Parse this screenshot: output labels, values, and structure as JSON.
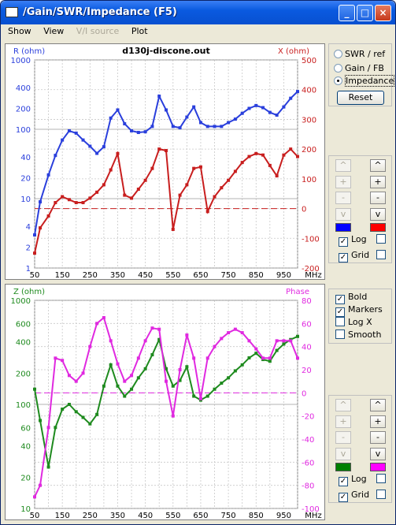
{
  "window": {
    "title": "/Gain/SWR/Impedance  (F5)"
  },
  "menu": {
    "show": "Show",
    "view": "View",
    "vi_source": "V/I source",
    "plot": "Plot"
  },
  "top_plot": {
    "title": "d130j-discone.out",
    "left_label": "R (ohm)",
    "right_label": "X (ohm)",
    "x_unit": "MHz",
    "x_ticks": [
      "50",
      "150",
      "250",
      "350",
      "450",
      "550",
      "650",
      "750",
      "850",
      "950"
    ],
    "left_ticks": [
      "1000",
      "400",
      "200",
      "100",
      "40",
      "20",
      "10",
      "4",
      "2",
      "1"
    ],
    "right_ticks": [
      "500",
      "400",
      "300",
      "200",
      "100",
      "0",
      "-100",
      "-200"
    ],
    "left_color": "#2a3fdc",
    "right_color": "#c81e1e"
  },
  "bottom_plot": {
    "left_label": "Z (ohm)",
    "right_label": "Phase",
    "x_unit": "MHz",
    "x_ticks": [
      "50",
      "150",
      "250",
      "350",
      "450",
      "550",
      "650",
      "750",
      "850",
      "950"
    ],
    "left_ticks": [
      "1000",
      "600",
      "400",
      "200",
      "100",
      "60",
      "40",
      "20",
      "10"
    ],
    "right_ticks": [
      "80",
      "60",
      "40",
      "20",
      "0",
      "-20",
      "-40",
      "-60",
      "-80",
      "-100"
    ],
    "left_color": "#1e8a1e",
    "right_color": "#e029e0"
  },
  "top_panel": {
    "radios": [
      "SWR / ref",
      "Gain / FB",
      "Impedance"
    ],
    "selected": "Impedance",
    "reset": "Reset",
    "buttons": [
      "^",
      "^",
      "+",
      "+",
      "-",
      "-",
      "v",
      "v"
    ],
    "log": "Log",
    "grid": "Grid",
    "log_checked": true,
    "grid_checked": true,
    "swatch_left": "#0000ff",
    "swatch_right": "#ff0000"
  },
  "bottom_panel": {
    "options": [
      {
        "label": "Bold",
        "checked": true
      },
      {
        "label": "Markers",
        "checked": true
      },
      {
        "label": "Log X",
        "checked": false
      },
      {
        "label": "Smooth",
        "checked": false
      }
    ],
    "buttons": [
      "^",
      "^",
      "+",
      "+",
      "-",
      "-",
      "v",
      "v"
    ],
    "log": "Log",
    "grid": "Grid",
    "log_checked": true,
    "grid_checked": true,
    "swatch_left": "#008000",
    "swatch_right": "#ff00ff"
  },
  "chart_data": [
    {
      "type": "line",
      "title": "d130j-discone.out",
      "xlabel": "MHz",
      "xlim": [
        50,
        1000
      ],
      "series": [
        {
          "name": "R (ohm)",
          "axis": "left-log",
          "ylim": [
            1,
            1000
          ],
          "x": [
            50,
            70,
            100,
            125,
            150,
            175,
            200,
            225,
            250,
            275,
            300,
            325,
            350,
            375,
            400,
            425,
            450,
            475,
            500,
            525,
            550,
            575,
            600,
            625,
            650,
            675,
            700,
            725,
            750,
            775,
            800,
            825,
            850,
            875,
            900,
            925,
            950,
            975,
            1000
          ],
          "values": [
            3,
            9,
            22,
            42,
            70,
            95,
            88,
            70,
            57,
            45,
            56,
            145,
            190,
            120,
            95,
            90,
            92,
            110,
            300,
            190,
            110,
            105,
            150,
            210,
            125,
            110,
            110,
            110,
            125,
            140,
            170,
            200,
            220,
            205,
            175,
            160,
            210,
            280,
            350
          ]
        },
        {
          "name": "X (ohm)",
          "axis": "right",
          "ylim": [
            -200,
            500
          ],
          "x": [
            50,
            70,
            100,
            125,
            150,
            175,
            200,
            225,
            250,
            275,
            300,
            325,
            350,
            375,
            400,
            425,
            450,
            475,
            500,
            525,
            550,
            575,
            600,
            625,
            650,
            675,
            700,
            725,
            750,
            775,
            800,
            825,
            850,
            875,
            900,
            925,
            950,
            975,
            1000
          ],
          "values": [
            -150,
            -65,
            -25,
            20,
            40,
            30,
            20,
            20,
            35,
            55,
            80,
            130,
            185,
            45,
            35,
            65,
            95,
            135,
            200,
            195,
            -70,
            45,
            80,
            135,
            140,
            -10,
            40,
            70,
            95,
            125,
            155,
            175,
            185,
            180,
            145,
            110,
            180,
            200,
            175
          ]
        }
      ]
    },
    {
      "type": "line",
      "xlabel": "MHz",
      "xlim": [
        50,
        1000
      ],
      "series": [
        {
          "name": "Z (ohm)",
          "axis": "left-log",
          "ylim": [
            10,
            1000
          ],
          "x": [
            50,
            70,
            100,
            125,
            150,
            175,
            200,
            225,
            250,
            275,
            300,
            325,
            350,
            375,
            400,
            425,
            450,
            475,
            500,
            525,
            550,
            575,
            600,
            625,
            650,
            675,
            700,
            725,
            750,
            775,
            800,
            825,
            850,
            875,
            900,
            925,
            950,
            975,
            1000
          ],
          "values": [
            140,
            70,
            25,
            60,
            90,
            100,
            85,
            75,
            65,
            80,
            150,
            240,
            150,
            120,
            140,
            180,
            220,
            300,
            420,
            220,
            150,
            170,
            230,
            120,
            110,
            120,
            140,
            160,
            180,
            210,
            240,
            280,
            310,
            270,
            260,
            330,
            380,
            420,
            450
          ]
        },
        {
          "name": "Phase",
          "axis": "right",
          "ylim": [
            -100,
            80
          ],
          "x": [
            50,
            70,
            100,
            125,
            150,
            175,
            200,
            225,
            250,
            275,
            300,
            325,
            350,
            375,
            400,
            425,
            450,
            475,
            500,
            525,
            550,
            575,
            600,
            625,
            650,
            675,
            700,
            725,
            750,
            775,
            800,
            825,
            850,
            875,
            900,
            925,
            950,
            975,
            1000
          ],
          "values": [
            -90,
            -80,
            -30,
            30,
            28,
            15,
            10,
            17,
            40,
            60,
            65,
            45,
            25,
            10,
            15,
            30,
            45,
            56,
            55,
            10,
            -20,
            20,
            50,
            30,
            -5,
            30,
            40,
            47,
            52,
            55,
            52,
            45,
            38,
            30,
            30,
            45,
            45,
            45,
            30
          ]
        }
      ]
    }
  ]
}
